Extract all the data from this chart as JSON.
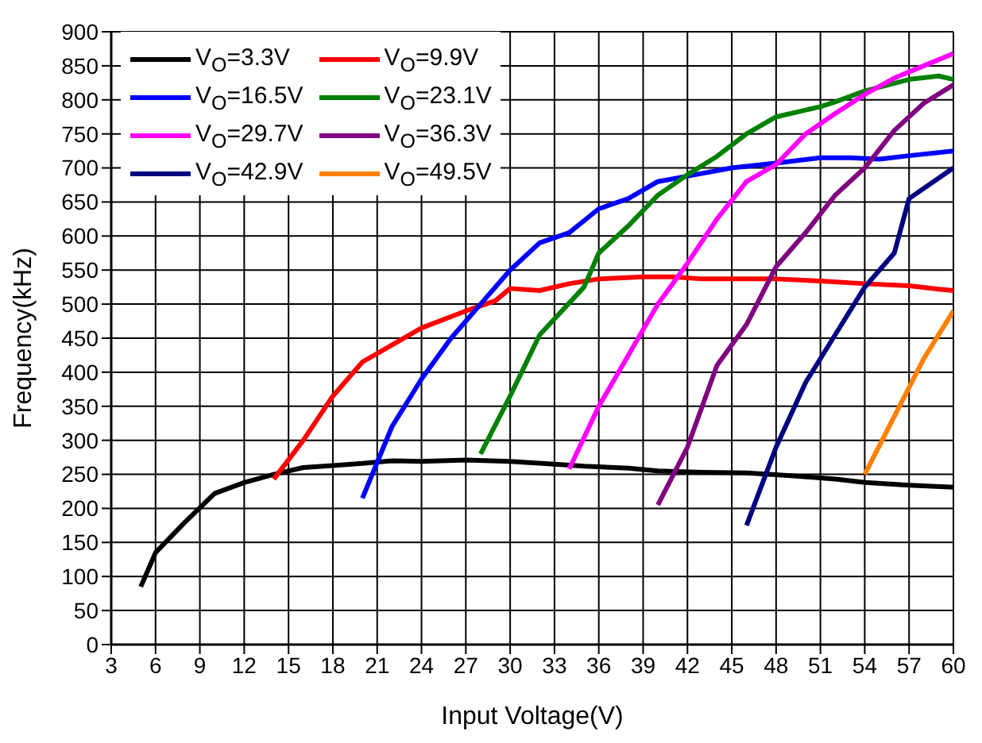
{
  "chart_data": {
    "type": "line",
    "xlabel": "Input Voltage(V)",
    "ylabel": "Frequency(kHz)",
    "xlim": [
      3,
      60
    ],
    "xticks": [
      3,
      6,
      9,
      12,
      15,
      18,
      21,
      24,
      27,
      30,
      33,
      36,
      39,
      42,
      45,
      48,
      51,
      54,
      57,
      60
    ],
    "ylim": [
      0,
      900
    ],
    "yticks": [
      0,
      50,
      100,
      150,
      200,
      250,
      300,
      350,
      400,
      450,
      500,
      550,
      600,
      650,
      700,
      750,
      800,
      850,
      900
    ],
    "grid": true,
    "legend": "top left",
    "marker": "none",
    "line_style": "solid",
    "series": [
      {
        "name": "V$_{O}$=3.3V",
        "color": "#000000",
        "x": [
          5,
          6,
          8,
          10,
          12,
          14,
          16,
          18,
          20,
          22,
          24,
          27,
          30,
          33,
          35,
          38,
          40,
          43,
          46,
          49,
          52,
          54,
          57,
          60
        ],
        "values": [
          85,
          135,
          180,
          222,
          238,
          250,
          260,
          263,
          266,
          270,
          269,
          271,
          269,
          265,
          262,
          259,
          255,
          253,
          252,
          248,
          243,
          238,
          234,
          231
        ]
      },
      {
        "name": "V$_{O}$=9.9V",
        "color": "#ff0000",
        "x": [
          14,
          16,
          18,
          20,
          22,
          24,
          27,
          29,
          30,
          32,
          34,
          36,
          39,
          41,
          43,
          46,
          48,
          51,
          54,
          57,
          59,
          60
        ],
        "values": [
          243,
          300,
          365,
          415,
          440,
          465,
          490,
          505,
          523,
          520,
          530,
          537,
          540,
          540,
          537,
          537,
          537,
          534,
          530,
          527,
          522,
          520
        ]
      },
      {
        "name": "V$_{O}$=16.5V",
        "color": "#0000ff",
        "x": [
          20,
          22,
          24,
          26,
          28,
          30,
          32,
          34,
          36,
          38,
          40,
          42,
          45,
          48,
          51,
          53,
          55,
          57,
          60
        ],
        "values": [
          215,
          320,
          390,
          450,
          500,
          550,
          590,
          605,
          640,
          655,
          680,
          688,
          700,
          707,
          715,
          715,
          713,
          718,
          725
        ]
      },
      {
        "name": "V$_{O}$=23.1V",
        "color": "#008000",
        "x": [
          28,
          30,
          32,
          35,
          36,
          38,
          40,
          42,
          44,
          46,
          48,
          51,
          52,
          54,
          57,
          59,
          60
        ],
        "values": [
          280,
          365,
          455,
          525,
          575,
          615,
          660,
          690,
          717,
          750,
          775,
          790,
          797,
          813,
          830,
          835,
          830
        ]
      },
      {
        "name": "V$_{O}$=29.7V",
        "color": "#ff00ff",
        "x": [
          34,
          36,
          38,
          40,
          42,
          44,
          46,
          48,
          50,
          52,
          54,
          56,
          58,
          60
        ],
        "values": [
          258,
          350,
          425,
          500,
          560,
          625,
          680,
          705,
          750,
          780,
          808,
          832,
          850,
          868
        ]
      },
      {
        "name": "V$_{O}$=36.3V",
        "color": "#800080",
        "x": [
          40,
          42,
          44,
          46,
          48,
          50,
          52,
          54,
          56,
          58,
          60
        ],
        "values": [
          205,
          290,
          410,
          470,
          555,
          605,
          660,
          700,
          755,
          795,
          822
        ]
      },
      {
        "name": "V$_{O}$=42.9V",
        "color": "#000080",
        "x": [
          46,
          48,
          50,
          52,
          54,
          56,
          57,
          60
        ],
        "values": [
          175,
          290,
          385,
          455,
          525,
          575,
          655,
          700
        ]
      },
      {
        "name": "V$_{O}$=49.5V",
        "color": "#ff8000",
        "x": [
          54,
          56,
          58,
          60
        ],
        "values": [
          250,
          335,
          420,
          490
        ]
      }
    ]
  }
}
